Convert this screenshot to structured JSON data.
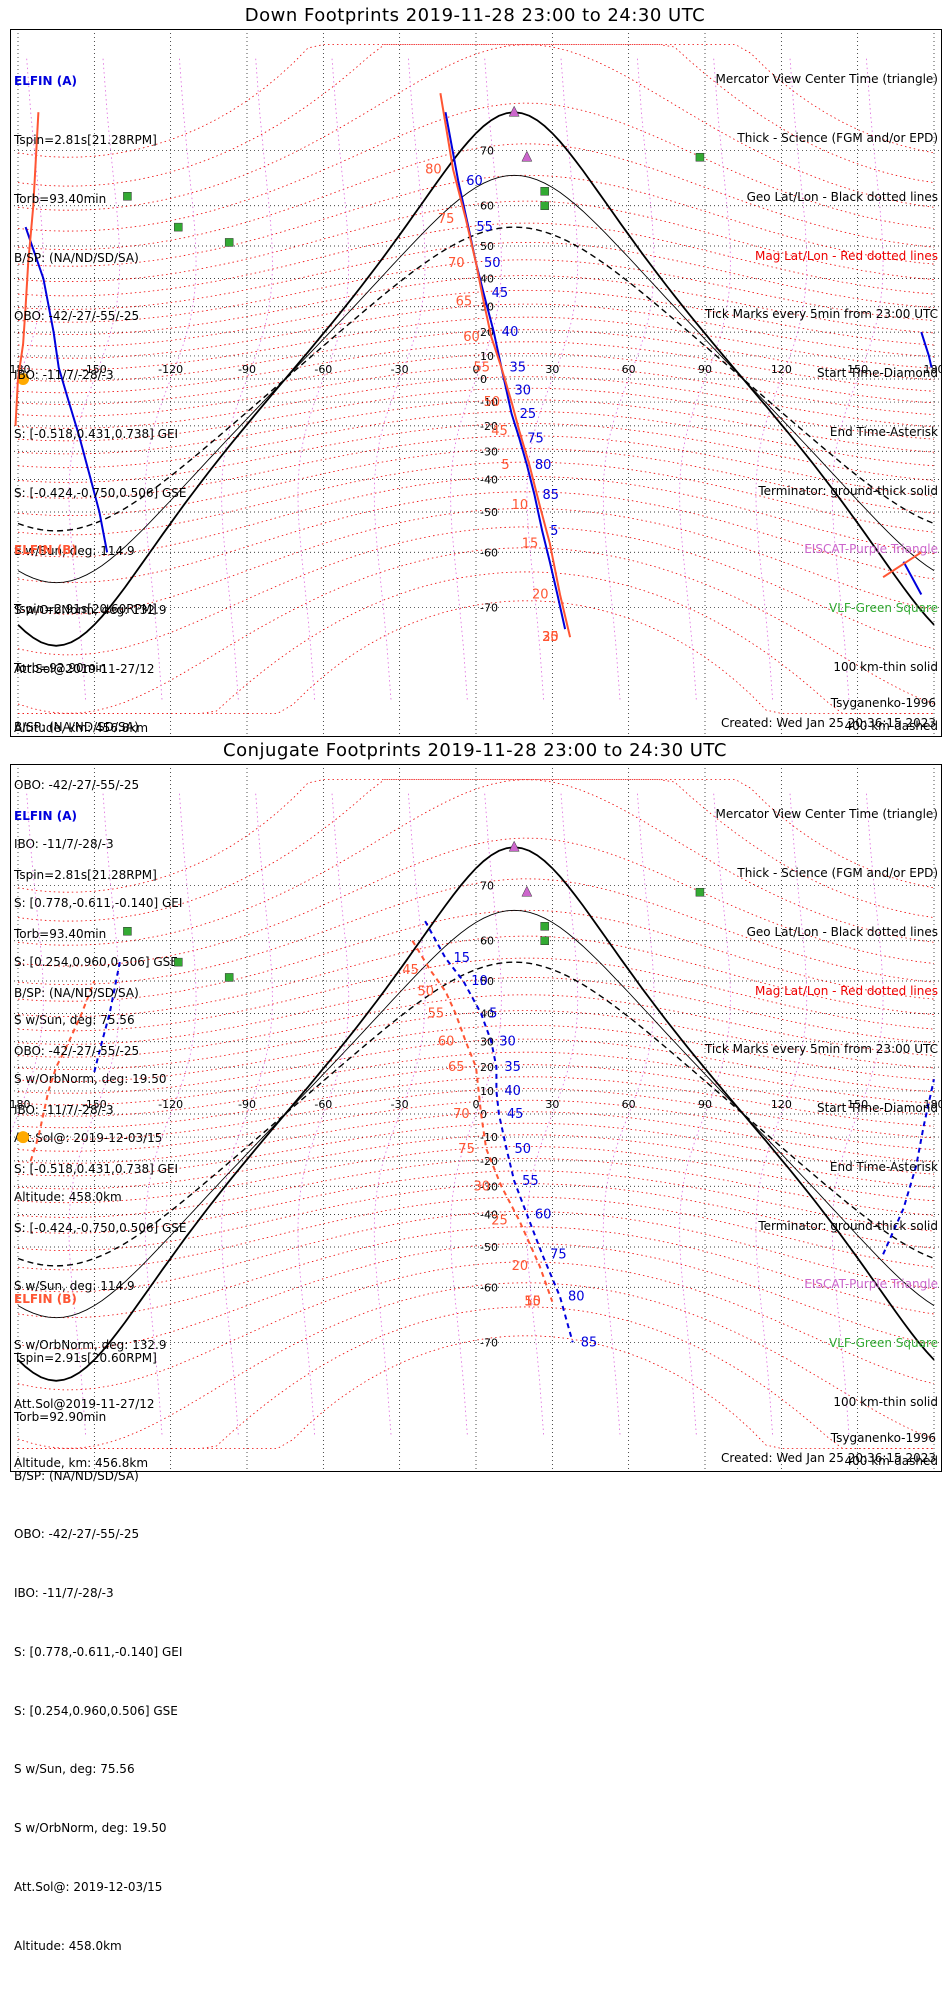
{
  "colors": {
    "elfin_a": "#0000dd",
    "elfin_b": "#ff5533",
    "terminator": "#000000",
    "mag_grid": "#ee0000",
    "geo_grid": "#000000",
    "tick_sweep": "#dd66dd",
    "eiscat": "#cc66cc",
    "vlf": "#33aa33",
    "coast": "#aaaaaa",
    "sun": "#ffaa00"
  },
  "common": {
    "map_lon_ticks": [
      "-180",
      "-150",
      "-120",
      "-90",
      "-60",
      "-30",
      "0",
      "30",
      "60",
      "90",
      "120",
      "150",
      "180"
    ],
    "map_lat_ticks": [
      "70",
      "60",
      "50",
      "40",
      "30",
      "20",
      "10",
      "0",
      "-10",
      "-20",
      "-30",
      "-40",
      "-50",
      "-60",
      "-70"
    ],
    "legend": [
      {
        "text": "Mercator View Center Time (triangle)",
        "color": "#000000"
      },
      {
        "text": "Thick - Science (FGM and/or EPD)",
        "color": "#000000"
      },
      {
        "text": "Geo Lat/Lon - Black dotted lines",
        "color": "#000000"
      },
      {
        "text": "Mag Lat/Lon - Red dotted lines",
        "color": "#ee0000"
      },
      {
        "text": "Tick Marks every 5min from 23:00 UTC",
        "color": "#000000"
      },
      {
        "text": "Start Time-Diamond",
        "color": "#000000"
      },
      {
        "text": "End Time-Asterisk",
        "color": "#000000"
      },
      {
        "text": "Terminator: ground-thick solid",
        "color": "#000000"
      },
      {
        "text": "EISCAT-Purple Triangle",
        "color": "#cc66cc"
      },
      {
        "text": "VLF-Green Square",
        "color": "#33aa33"
      },
      {
        "text": "100 km-thin solid",
        "color": "#000000"
      },
      {
        "text": "400 km-dashed",
        "color": "#000000"
      }
    ],
    "elfin_a_info": {
      "name": "ELFIN (A)",
      "lines": [
        "Tspin=2.81s[21.28RPM]",
        "Torb=93.40min",
        "B/SP: (NA/ND/SD/SA)",
        "OBO: -42/-27/-55/-25",
        "IBO: -11/7/-28/-3",
        "S: [-0.518,0.431,0.738] GEI",
        "S: [-0.424,-0.750,0.506] GSE",
        "S w/Sun, deg: 114.9",
        "S w/OrbNorm, deg: 132.9",
        "Att.Sol@2019-11-27/12",
        "Altitude, km: 456.8km"
      ]
    },
    "elfin_b_info": {
      "name": "ELFIN (B)",
      "lines": [
        "Tspin=2.91s[20.60RPM]",
        "Torb=92.90min",
        "B/SP: (NA/ND/SD/SA)",
        "OBO: -42/-27/-55/-25",
        "IBO: -11/7/-28/-3",
        "S: [0.778,-0.611,-0.140] GEI",
        "S: [0.254,0.960,0.506] GSE",
        "S w/Sun, deg: 75.56",
        "S w/OrbNorm, deg: 19.50",
        "Att.Sol@: 2019-12-03/15",
        "Altitude: 458.0km"
      ]
    },
    "model": "Tsyganenko-1996",
    "created": "Created: Wed Jan 25 20:36:15 2023"
  },
  "chart_data": [
    {
      "type": "map-track",
      "title": "Down Footprints 2019-11-28 23:00 to 24:30 UTC",
      "xlim": [
        -180,
        180
      ],
      "ylim": [
        -80,
        80
      ],
      "grid": true,
      "legend_position": "top-right",
      "series": [
        {
          "name": "ELFIN (A)",
          "track": [
            [
              -177,
              55
            ],
            [
              -170,
              40
            ],
            [
              -166,
              20
            ],
            [
              -164,
              5
            ],
            [
              -160,
              -10
            ],
            [
              -156,
              -24
            ],
            [
              -152,
              -38
            ],
            [
              -148,
              -50
            ],
            [
              -145,
              -60
            ]
          ],
          "track2": [
            [
              -12,
              75
            ],
            [
              -7,
              65
            ],
            [
              -3,
              55
            ],
            [
              0,
              45
            ],
            [
              3,
              35
            ],
            [
              7,
              20
            ],
            [
              10,
              5
            ],
            [
              12,
              -5
            ],
            [
              14,
              -15
            ],
            [
              17,
              -25
            ],
            [
              20,
              -35
            ],
            [
              23,
              -45
            ],
            [
              26,
              -55
            ],
            [
              29,
              -62
            ],
            [
              32,
              -68
            ],
            [
              35,
              -73
            ]
          ],
          "track3": [
            [
              175,
              20
            ],
            [
              178,
              10
            ],
            [
              179,
              5
            ]
          ],
          "track4": [
            [
              168,
              -62
            ],
            [
              175,
              -68
            ]
          ],
          "tick_labels": [
            "60",
            "55",
            "50",
            "45",
            "40",
            "35",
            "30",
            "25",
            "75",
            "80",
            "85",
            "5"
          ]
        },
        {
          "name": "ELFIN (B)",
          "track": [
            [
              -172,
              75
            ],
            [
              -174,
              60
            ],
            [
              -176,
              45
            ],
            [
              -177,
              30
            ],
            [
              -178,
              15
            ],
            [
              -180,
              0
            ],
            [
              -181,
              -20
            ]
          ],
          "track2": [
            [
              -14,
              77
            ],
            [
              -9,
              67
            ],
            [
              -4,
              57
            ],
            [
              0,
              45
            ],
            [
              3,
              32
            ],
            [
              6,
              18
            ],
            [
              10,
              5
            ],
            [
              14,
              -10
            ],
            [
              17,
              -22
            ],
            [
              21,
              -35
            ],
            [
              25,
              -48
            ],
            [
              29,
              -58
            ],
            [
              33,
              -68
            ],
            [
              37,
              -74
            ]
          ],
          "track3": [
            [
              160,
              -65
            ],
            [
              175,
              -60
            ]
          ],
          "tick_labels": [
            "80",
            "75",
            "70",
            "65",
            "60",
            "55",
            "50",
            "45",
            "5",
            "10",
            "15",
            "20",
            "25",
            "30",
            "35"
          ]
        }
      ]
    },
    {
      "type": "map-track",
      "title": "Conjugate Footprints 2019-11-28 23:00 to 24:30 UTC",
      "xlim": [
        -180,
        180
      ],
      "ylim": [
        -80,
        80
      ],
      "grid": true,
      "legend_position": "top-right",
      "series": [
        {
          "name": "ELFIN (A)",
          "track": [
            [
              -150,
              18
            ],
            [
              -147,
              30
            ],
            [
              -144,
              40
            ],
            [
              -142,
              48
            ],
            [
              -140,
              55
            ]
          ],
          "track2": [
            [
              -20,
              64
            ],
            [
              -12,
              56
            ],
            [
              -5,
              50
            ],
            [
              2,
              40
            ],
            [
              6,
              30
            ],
            [
              8,
              20
            ],
            [
              8,
              10
            ],
            [
              9,
              0
            ],
            [
              12,
              -15
            ],
            [
              15,
              -28
            ],
            [
              20,
              -40
            ],
            [
              26,
              -52
            ],
            [
              33,
              -62
            ],
            [
              38,
              -70
            ]
          ],
          "track3": [
            [
              160,
              -52
            ],
            [
              168,
              -38
            ],
            [
              173,
              -22
            ],
            [
              176,
              -5
            ],
            [
              180,
              15
            ]
          ],
          "tick_labels": [
            "15",
            "10",
            "5",
            "30",
            "35",
            "40",
            "45",
            "50",
            "55",
            "60",
            "75",
            "80",
            "85"
          ]
        },
        {
          "name": "ELFIN (B)",
          "track": [
            [
              -175,
              -20
            ],
            [
              -172,
              -10
            ],
            [
              -170,
              0
            ],
            [
              -168,
              10
            ],
            [
              -165,
              20
            ],
            [
              -160,
              30
            ],
            [
              -155,
              40
            ],
            [
              -150,
              50
            ]
          ],
          "track2": [
            [
              -25,
              60
            ],
            [
              -18,
              53
            ],
            [
              -12,
              47
            ],
            [
              -8,
              40
            ],
            [
              -4,
              30
            ],
            [
              0,
              20
            ],
            [
              2,
              0
            ],
            [
              4,
              -15
            ],
            [
              10,
              -30
            ],
            [
              17,
              -42
            ],
            [
              25,
              -55
            ],
            [
              30,
              -63
            ]
          ],
          "track3": [
            [
              175,
              -45
            ]
          ],
          "tick_labels": [
            "45",
            "50",
            "55",
            "60",
            "65",
            "70",
            "75",
            "30",
            "25",
            "20",
            "15",
            "10",
            "5"
          ]
        }
      ]
    }
  ]
}
